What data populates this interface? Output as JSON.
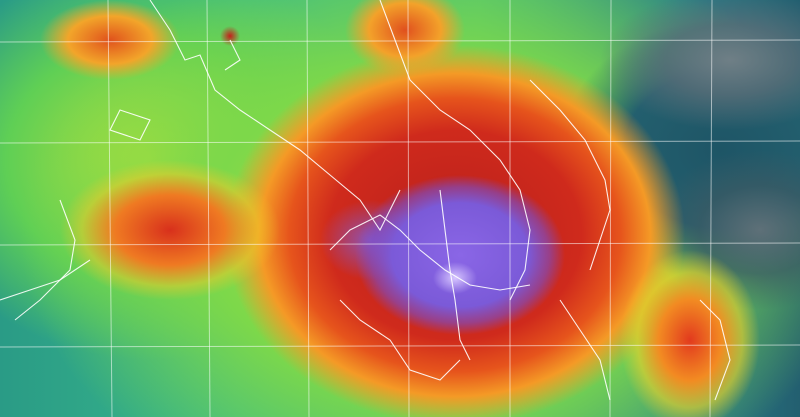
{
  "image": {
    "kind": "enhanced infrared satellite image",
    "colors": {
      "coldest_tops": "#7b5ad8",
      "very_cold": "#cf2a1c",
      "cold": "#f49a26",
      "moderate": "#c8e23a",
      "warm": "#47c07a",
      "clear": "#235f70",
      "grid": "#ffffff",
      "coastline": "#ffffff"
    }
  }
}
